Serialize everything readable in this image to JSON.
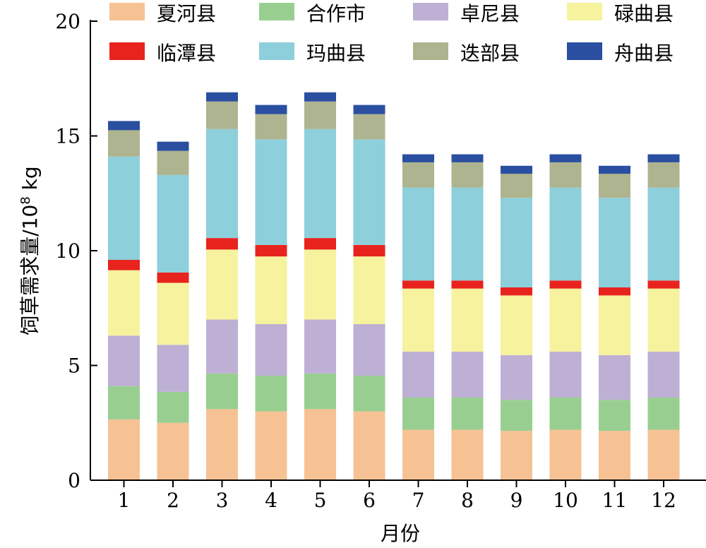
{
  "chart_data": {
    "type": "bar",
    "stacked": true,
    "xlabel": "月份",
    "ylabel": "饲草需求量/10",
    "ylabel_sup": "8",
    "ylabel_unit": " kg",
    "ylim": [
      0,
      20
    ],
    "yticks": [
      0,
      5,
      10,
      15,
      20
    ],
    "grid": false,
    "legend_position": "top",
    "categories": [
      "1",
      "2",
      "3",
      "4",
      "5",
      "6",
      "7",
      "8",
      "9",
      "10",
      "11",
      "12"
    ],
    "series": [
      {
        "name": "夏河县",
        "color": "#F6C294",
        "values": [
          2.65,
          2.5,
          3.1,
          3.0,
          3.1,
          3.0,
          2.2,
          2.2,
          2.15,
          2.2,
          2.15,
          2.2
        ]
      },
      {
        "name": "合作市",
        "color": "#98CF91",
        "values": [
          1.45,
          1.35,
          1.55,
          1.55,
          1.55,
          1.55,
          1.4,
          1.4,
          1.35,
          1.4,
          1.35,
          1.4
        ]
      },
      {
        "name": "卓尼县",
        "color": "#BDB0D4",
        "values": [
          2.2,
          2.05,
          2.35,
          2.25,
          2.35,
          2.25,
          2.0,
          2.0,
          1.95,
          2.0,
          1.95,
          2.0
        ]
      },
      {
        "name": "碌曲县",
        "color": "#F6F29E",
        "values": [
          2.85,
          2.7,
          3.05,
          2.95,
          3.05,
          2.95,
          2.75,
          2.75,
          2.6,
          2.75,
          2.6,
          2.75
        ]
      },
      {
        "name": "临潭县",
        "color": "#E8231E",
        "values": [
          0.45,
          0.45,
          0.5,
          0.5,
          0.5,
          0.5,
          0.35,
          0.35,
          0.35,
          0.35,
          0.35,
          0.35
        ]
      },
      {
        "name": "玛曲县",
        "color": "#8DCFDB",
        "values": [
          4.5,
          4.25,
          4.75,
          4.6,
          4.75,
          4.6,
          4.05,
          4.05,
          3.9,
          4.05,
          3.9,
          4.05
        ]
      },
      {
        "name": "迭部县",
        "color": "#AEB48F",
        "values": [
          1.15,
          1.05,
          1.2,
          1.1,
          1.2,
          1.1,
          1.1,
          1.1,
          1.05,
          1.1,
          1.05,
          1.1
        ]
      },
      {
        "name": "舟曲县",
        "color": "#2A4FA0",
        "values": [
          0.4,
          0.4,
          0.4,
          0.4,
          0.4,
          0.4,
          0.35,
          0.35,
          0.35,
          0.35,
          0.35,
          0.35
        ]
      }
    ]
  }
}
